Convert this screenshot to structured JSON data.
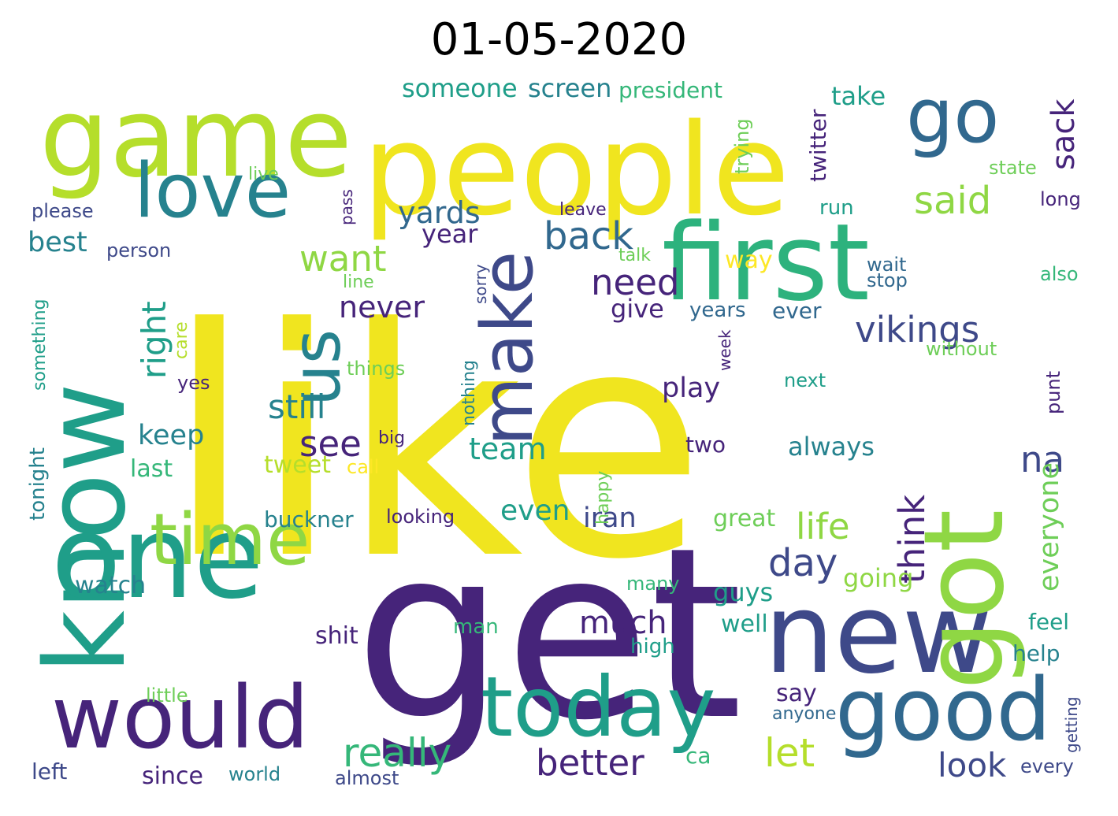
{
  "title": "01-05-2020",
  "palette": [
    "#440154",
    "#482878",
    "#3e4989",
    "#31688e",
    "#26828e",
    "#1f9e89",
    "#35b779",
    "#6ece58",
    "#b5de2b",
    "#fde725"
  ],
  "words": [
    {
      "text": "like",
      "color": "#f0e51f"
    },
    {
      "text": "get",
      "color": "#46247a"
    },
    {
      "text": "people",
      "color": "#f0e51f"
    },
    {
      "text": "game",
      "color": "#b5de2b"
    },
    {
      "text": "first",
      "color": "#2db27d"
    },
    {
      "text": "know",
      "color": "#1f9e89"
    },
    {
      "text": "one",
      "color": "#1f9e89"
    },
    {
      "text": "new",
      "color": "#3e4989"
    },
    {
      "text": "got",
      "color": "#8fd744"
    },
    {
      "text": "good",
      "color": "#31688e"
    },
    {
      "text": "would",
      "color": "#46247a"
    },
    {
      "text": "today",
      "color": "#1f9e89"
    },
    {
      "text": "time",
      "color": "#8fd744"
    },
    {
      "text": "love",
      "color": "#26828e"
    },
    {
      "text": "go",
      "color": "#31688e"
    },
    {
      "text": "us",
      "color": "#26828e"
    },
    {
      "text": "make",
      "color": "#3e4989"
    },
    {
      "text": "vikings",
      "color": "#3e4989"
    },
    {
      "text": "back",
      "color": "#31688e"
    },
    {
      "text": "need",
      "color": "#46247a"
    },
    {
      "text": "said",
      "color": "#8fd744"
    },
    {
      "text": "sack",
      "color": "#46247a"
    },
    {
      "text": "want",
      "color": "#8fd744"
    },
    {
      "text": "right",
      "color": "#1f9e89"
    },
    {
      "text": "still",
      "color": "#26828e"
    },
    {
      "text": "see",
      "color": "#46247a"
    },
    {
      "text": "day",
      "color": "#3e4989"
    },
    {
      "text": "life",
      "color": "#8fd744"
    },
    {
      "text": "think",
      "color": "#46247a"
    },
    {
      "text": "na",
      "color": "#3e4989"
    },
    {
      "text": "everyone",
      "color": "#6ece58"
    },
    {
      "text": "really",
      "color": "#35b779"
    },
    {
      "text": "better",
      "color": "#46247a"
    },
    {
      "text": "let",
      "color": "#b5de2b"
    },
    {
      "text": "look",
      "color": "#3e4989"
    },
    {
      "text": "much",
      "color": "#46247a"
    },
    {
      "text": "iran",
      "color": "#3e4989"
    },
    {
      "text": "team",
      "color": "#1f9e89"
    },
    {
      "text": "even",
      "color": "#1f9e89"
    },
    {
      "text": "play",
      "color": "#46247a"
    },
    {
      "text": "keep",
      "color": "#26828e"
    },
    {
      "text": "never",
      "color": "#46247a"
    },
    {
      "text": "yards",
      "color": "#31688e"
    },
    {
      "text": "year",
      "color": "#46247a"
    },
    {
      "text": "best",
      "color": "#26828e"
    },
    {
      "text": "someone",
      "color": "#1f9e89"
    },
    {
      "text": "screen",
      "color": "#26828e"
    },
    {
      "text": "president",
      "color": "#35b779"
    },
    {
      "text": "take",
      "color": "#1f9e89"
    },
    {
      "text": "twitter",
      "color": "#46247a"
    },
    {
      "text": "trying",
      "color": "#6ece58"
    },
    {
      "text": "state",
      "color": "#6ece58"
    },
    {
      "text": "long",
      "color": "#46247a"
    },
    {
      "text": "run",
      "color": "#1f9e89"
    },
    {
      "text": "way",
      "color": "#fde725"
    },
    {
      "text": "give",
      "color": "#46247a"
    },
    {
      "text": "years",
      "color": "#31688e"
    },
    {
      "text": "ever",
      "color": "#31688e"
    },
    {
      "text": "wait",
      "color": "#31688e"
    },
    {
      "text": "stop",
      "color": "#31688e"
    },
    {
      "text": "also",
      "color": "#35b779"
    },
    {
      "text": "without",
      "color": "#6ece58"
    },
    {
      "text": "next",
      "color": "#1f9e89"
    },
    {
      "text": "punt",
      "color": "#46247a"
    },
    {
      "text": "always",
      "color": "#26828e"
    },
    {
      "text": "two",
      "color": "#46247a"
    },
    {
      "text": "week",
      "color": "#46247a"
    },
    {
      "text": "great",
      "color": "#6ece58"
    },
    {
      "text": "going",
      "color": "#8fd744"
    },
    {
      "text": "guys",
      "color": "#1f9e89"
    },
    {
      "text": "well",
      "color": "#1f9e89"
    },
    {
      "text": "feel",
      "color": "#1f9e89"
    },
    {
      "text": "help",
      "color": "#26828e"
    },
    {
      "text": "getting",
      "color": "#3e4989"
    },
    {
      "text": "say",
      "color": "#46247a"
    },
    {
      "text": "anyone",
      "color": "#31688e"
    },
    {
      "text": "every",
      "color": "#3e4989"
    },
    {
      "text": "high",
      "color": "#1f9e89"
    },
    {
      "text": "many",
      "color": "#35b779"
    },
    {
      "text": "ca",
      "color": "#35b779"
    },
    {
      "text": "watch",
      "color": "#26828e"
    },
    {
      "text": "shit",
      "color": "#46247a"
    },
    {
      "text": "man",
      "color": "#35b779"
    },
    {
      "text": "since",
      "color": "#46247a"
    },
    {
      "text": "world",
      "color": "#26828e"
    },
    {
      "text": "almost",
      "color": "#3e4989"
    },
    {
      "text": "left",
      "color": "#3e4989"
    },
    {
      "text": "little",
      "color": "#6ece58"
    },
    {
      "text": "tweet",
      "color": "#b5de2b"
    },
    {
      "text": "call",
      "color": "#fde725"
    },
    {
      "text": "last",
      "color": "#35b779"
    },
    {
      "text": "big",
      "color": "#46247a"
    },
    {
      "text": "buckner",
      "color": "#26828e"
    },
    {
      "text": "looking",
      "color": "#46247a"
    },
    {
      "text": "happy",
      "color": "#6ece58"
    },
    {
      "text": "nothing",
      "color": "#26828e"
    },
    {
      "text": "things",
      "color": "#6ece58"
    },
    {
      "text": "yes",
      "color": "#46247a"
    },
    {
      "text": "care",
      "color": "#b5de2b"
    },
    {
      "text": "something",
      "color": "#1f9e89"
    },
    {
      "text": "tonight",
      "color": "#26828e"
    },
    {
      "text": "person",
      "color": "#3e4989"
    },
    {
      "text": "please",
      "color": "#3e4989"
    },
    {
      "text": "live",
      "color": "#6ece58"
    },
    {
      "text": "pass",
      "color": "#46247a"
    },
    {
      "text": "leave",
      "color": "#46247a"
    },
    {
      "text": "talk",
      "color": "#6ece58"
    },
    {
      "text": "line",
      "color": "#6ece58"
    },
    {
      "text": "sorry",
      "color": "#3e4989"
    }
  ]
}
